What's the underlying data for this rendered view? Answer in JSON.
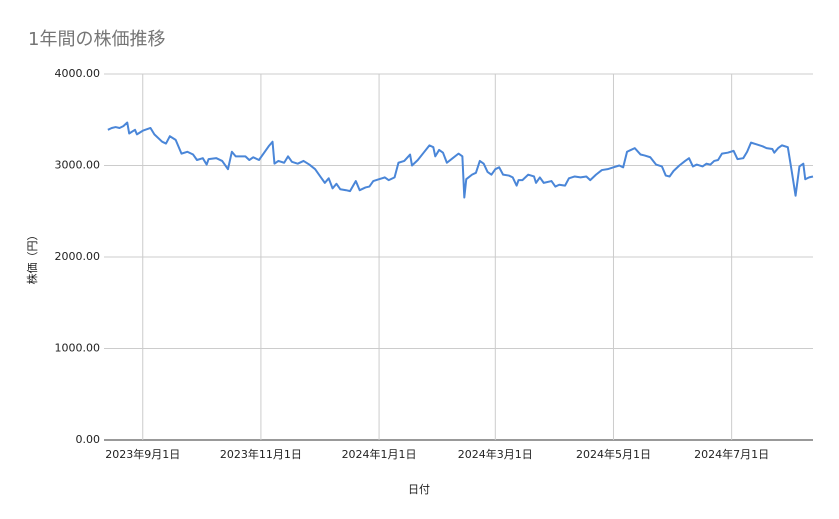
{
  "chart_data": {
    "type": "line",
    "title": "1年間の株価推移",
    "x_label": "日付",
    "y_label": "株価（円）",
    "x": [
      "2023-08-14",
      "2023-08-16",
      "2023-08-18",
      "2023-08-20",
      "2023-08-22",
      "2023-08-24",
      "2023-08-25",
      "2023-08-28",
      "2023-08-29",
      "2023-09-01",
      "2023-09-05",
      "2023-09-07",
      "2023-09-11",
      "2023-09-13",
      "2023-09-15",
      "2023-09-18",
      "2023-09-21",
      "2023-09-24",
      "2023-09-27",
      "2023-09-29",
      "2023-10-02",
      "2023-10-04",
      "2023-10-05",
      "2023-10-09",
      "2023-10-12",
      "2023-10-15",
      "2023-10-17",
      "2023-10-19",
      "2023-10-24",
      "2023-10-26",
      "2023-10-28",
      "2023-10-31",
      "2023-11-03",
      "2023-11-05",
      "2023-11-07",
      "2023-11-08",
      "2023-11-10",
      "2023-11-13",
      "2023-11-15",
      "2023-11-17",
      "2023-11-20",
      "2023-11-23",
      "2023-11-26",
      "2023-11-29",
      "2023-12-02",
      "2023-12-04",
      "2023-12-06",
      "2023-12-08",
      "2023-12-10",
      "2023-12-12",
      "2023-12-15",
      "2023-12-17",
      "2023-12-20",
      "2023-12-22",
      "2023-12-25",
      "2023-12-27",
      "2023-12-29",
      "2024-01-01",
      "2024-01-04",
      "2024-01-06",
      "2024-01-09",
      "2024-01-11",
      "2024-01-14",
      "2024-01-17",
      "2024-01-18",
      "2024-01-21",
      "2024-01-24",
      "2024-01-27",
      "2024-01-29",
      "2024-01-30",
      "2024-02-01",
      "2024-02-03",
      "2024-02-05",
      "2024-02-08",
      "2024-02-11",
      "2024-02-13",
      "2024-02-14",
      "2024-02-15",
      "2024-02-18",
      "2024-02-20",
      "2024-02-22",
      "2024-02-24",
      "2024-02-26",
      "2024-02-28",
      "2024-03-01",
      "2024-03-03",
      "2024-03-05",
      "2024-03-08",
      "2024-03-10",
      "2024-03-12",
      "2024-03-13",
      "2024-03-15",
      "2024-03-18",
      "2024-03-21",
      "2024-03-22",
      "2024-03-24",
      "2024-03-26",
      "2024-03-30",
      "2024-04-01",
      "2024-04-03",
      "2024-04-06",
      "2024-04-08",
      "2024-04-11",
      "2024-04-14",
      "2024-04-17",
      "2024-04-19",
      "2024-04-22",
      "2024-04-25",
      "2024-04-28",
      "2024-05-01",
      "2024-05-04",
      "2024-05-06",
      "2024-05-08",
      "2024-05-10",
      "2024-05-12",
      "2024-05-15",
      "2024-05-17",
      "2024-05-20",
      "2024-05-23",
      "2024-05-26",
      "2024-05-28",
      "2024-05-30",
      "2024-06-01",
      "2024-06-04",
      "2024-06-07",
      "2024-06-09",
      "2024-06-11",
      "2024-06-13",
      "2024-06-16",
      "2024-06-18",
      "2024-06-20",
      "2024-06-22",
      "2024-06-24",
      "2024-06-26",
      "2024-06-29",
      "2024-07-02",
      "2024-07-04",
      "2024-07-07",
      "2024-07-09",
      "2024-07-11",
      "2024-07-14",
      "2024-07-17",
      "2024-07-19",
      "2024-07-22",
      "2024-07-23",
      "2024-07-25",
      "2024-07-27",
      "2024-07-30",
      "2024-08-01",
      "2024-08-03",
      "2024-08-05",
      "2024-08-07",
      "2024-08-08",
      "2024-08-10",
      "2024-08-12"
    ],
    "series": [
      {
        "name": "株価",
        "color": "#4a86d8",
        "values": [
          3390,
          3410,
          3420,
          3410,
          3430,
          3470,
          3350,
          3390,
          3340,
          3380,
          3410,
          3340,
          3260,
          3240,
          3320,
          3280,
          3130,
          3150,
          3120,
          3060,
          3080,
          3010,
          3070,
          3080,
          3050,
          2960,
          3150,
          3100,
          3100,
          3060,
          3090,
          3060,
          3150,
          3210,
          3260,
          3020,
          3050,
          3030,
          3100,
          3040,
          3020,
          3050,
          3010,
          2960,
          2870,
          2810,
          2860,
          2750,
          2800,
          2740,
          2730,
          2720,
          2830,
          2730,
          2760,
          2770,
          2830,
          2850,
          2870,
          2840,
          2870,
          3030,
          3050,
          3120,
          3000,
          3060,
          3140,
          3220,
          3200,
          3100,
          3170,
          3140,
          3030,
          3080,
          3130,
          3100,
          2650,
          2850,
          2900,
          2920,
          3050,
          3020,
          2930,
          2900,
          2960,
          2980,
          2900,
          2890,
          2870,
          2780,
          2840,
          2840,
          2900,
          2880,
          2810,
          2870,
          2810,
          2830,
          2770,
          2790,
          2780,
          2860,
          2880,
          2870,
          2880,
          2840,
          2900,
          2950,
          2960,
          2980,
          3000,
          2980,
          3150,
          3170,
          3190,
          3120,
          3110,
          3090,
          3010,
          2990,
          2890,
          2880,
          2940,
          3000,
          3050,
          3080,
          2990,
          3010,
          2990,
          3020,
          3010,
          3050,
          3060,
          3130,
          3140,
          3160,
          3070,
          3080,
          3150,
          3250,
          3230,
          3210,
          3190,
          3180,
          3140,
          3190,
          3220,
          3200,
          2940,
          2670,
          2990,
          3020,
          2850,
          2870,
          2880
        ]
      }
    ],
    "xlim": [
      "2023-08-12",
      "2024-08-12"
    ],
    "xticks": [
      {
        "value": "2023-09-01",
        "label": "2023年9月1日"
      },
      {
        "value": "2023-11-01",
        "label": "2023年11月1日"
      },
      {
        "value": "2024-01-01",
        "label": "2024年1月1日"
      },
      {
        "value": "2024-03-01",
        "label": "2024年3月1日"
      },
      {
        "value": "2024-05-01",
        "label": "2024年5月1日"
      },
      {
        "value": "2024-07-01",
        "label": "2024年7月1日"
      }
    ],
    "ylim": [
      0,
      4000
    ],
    "yticks": [
      {
        "value": 0,
        "label": "0.00"
      },
      {
        "value": 1000,
        "label": "1000.00"
      },
      {
        "value": 2000,
        "label": "2000.00"
      },
      {
        "value": 3000,
        "label": "3000.00"
      },
      {
        "value": 4000,
        "label": "4000.00"
      }
    ],
    "grid": true
  }
}
